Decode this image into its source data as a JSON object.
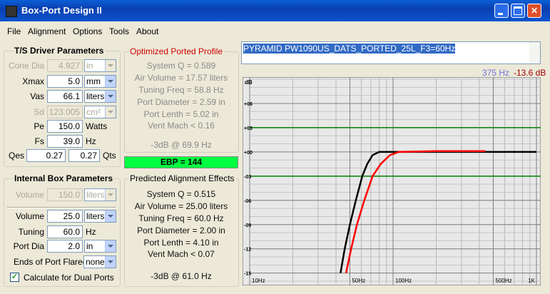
{
  "window": {
    "title": "Box-Port Design II"
  },
  "menu": [
    "File",
    "Alignment",
    "Options",
    "Tools",
    "About"
  ],
  "driver": {
    "title": "T/S Driver Parameters",
    "rows": [
      {
        "label": "Cone Dia",
        "value": "4.927",
        "unit": "in",
        "disabled": true,
        "dropdown": true
      },
      {
        "label": "Xmax",
        "value": "5.0",
        "unit": "mm",
        "disabled": false,
        "dropdown": true
      },
      {
        "label": "Vas",
        "value": "66.1",
        "unit": "liters",
        "disabled": false,
        "dropdown": true
      },
      {
        "label": "Sd",
        "value": "123.005",
        "unit": "cm²",
        "disabled": true,
        "dropdown": true
      },
      {
        "label": "Pe",
        "value": "150.0",
        "unit": "Watts",
        "disabled": false,
        "dropdown": false
      },
      {
        "label": "Fs",
        "value": "39.0",
        "unit": "Hz",
        "disabled": false,
        "dropdown": false
      }
    ],
    "qes": {
      "label": "Qes",
      "value": "0.27",
      "value2": "0.27",
      "unit": "Qts"
    }
  },
  "box": {
    "title": "Internal Box Parameters",
    "rows": [
      {
        "label": "Volume",
        "value": "150.0",
        "unit": "liters",
        "disabled": true,
        "dropdown": true
      },
      {
        "label": "Volume",
        "value": "25.0",
        "unit": "liters",
        "disabled": false,
        "dropdown": true
      },
      {
        "label": "Tuning",
        "value": "60.0",
        "unit": "Hz",
        "disabled": false,
        "dropdown": false
      },
      {
        "label": "Port Dia",
        "value": "2.0",
        "unit": "in",
        "disabled": false,
        "dropdown": true
      }
    ],
    "flared": {
      "label": "Ends of Port Flared",
      "value": "none"
    },
    "dual": {
      "label": "Calculate for Dual Ports",
      "checked": true
    }
  },
  "optimized": {
    "title": "Optimized Ported Profile",
    "lines": [
      "System Q = 0.589",
      "Air Volume = 17.57 liters",
      "Tuning Freq = 58.8 Hz",
      "Port Diameter = 2.59 in",
      "Port Lenth = 5.02 in",
      "Vent Mach < 0.16"
    ],
    "f3": "-3dB @ 69.9 Hz"
  },
  "ebp": "EBP = 144",
  "predicted": {
    "title": "Predicted Alignment Effects",
    "lines": [
      "System Q = 0.515",
      "Air Volume = 25.00 liters",
      "Tuning Freq = 60.0 Hz",
      "Port Diameter = 2.00 in",
      "Port Lenth = 4.10 in",
      "Vent Mach < 0.07"
    ],
    "f3": "-3dB @ 61.0 Hz"
  },
  "notes": "PYRAMID PW1090US_DATS_PORTED_25L_F3=60Hz",
  "cursor": {
    "freq": "375 Hz",
    "level": "-13.6 dB"
  },
  "chart_data": {
    "type": "line",
    "y_label": "dB",
    "xscale": "log",
    "xlim": [
      10,
      1000
    ],
    "ylim": [
      -16,
      9
    ],
    "xticks": [
      {
        "value": 10,
        "label": "10Hz"
      },
      {
        "value": 50,
        "label": "50Hz"
      },
      {
        "value": 100,
        "label": "100Hz"
      },
      {
        "value": 500,
        "label": "500Hz"
      },
      {
        "value": 1000,
        "label": "1K"
      }
    ],
    "yticks": [
      {
        "value": 6,
        "label": "+06"
      },
      {
        "value": 3,
        "label": "+03"
      },
      {
        "value": 0,
        "label": "+00"
      },
      {
        "value": -3,
        "label": "-03"
      },
      {
        "value": -6,
        "label": "-06"
      },
      {
        "value": -9,
        "label": "-09"
      },
      {
        "value": -12,
        "label": "-12"
      },
      {
        "value": -15,
        "label": "-15"
      }
    ],
    "highlight_yticks": [
      3,
      -3
    ],
    "highlight_color": "#008000",
    "series": [
      {
        "color": "#000000",
        "x": [
          43,
          46,
          50,
          55,
          61,
          66,
          72,
          80,
          100,
          200,
          500,
          1000
        ],
        "values": [
          -15,
          -12,
          -9,
          -6,
          -3,
          -1.5,
          -0.4,
          0,
          0,
          0,
          0,
          0
        ]
      },
      {
        "color": "#ff0000",
        "x": [
          47,
          51,
          56,
          63,
          72,
          82,
          95,
          110,
          200,
          440
        ],
        "values": [
          -15,
          -12,
          -9,
          -6,
          -3,
          -1.5,
          -0.4,
          0,
          0.1,
          0.1
        ]
      }
    ]
  }
}
